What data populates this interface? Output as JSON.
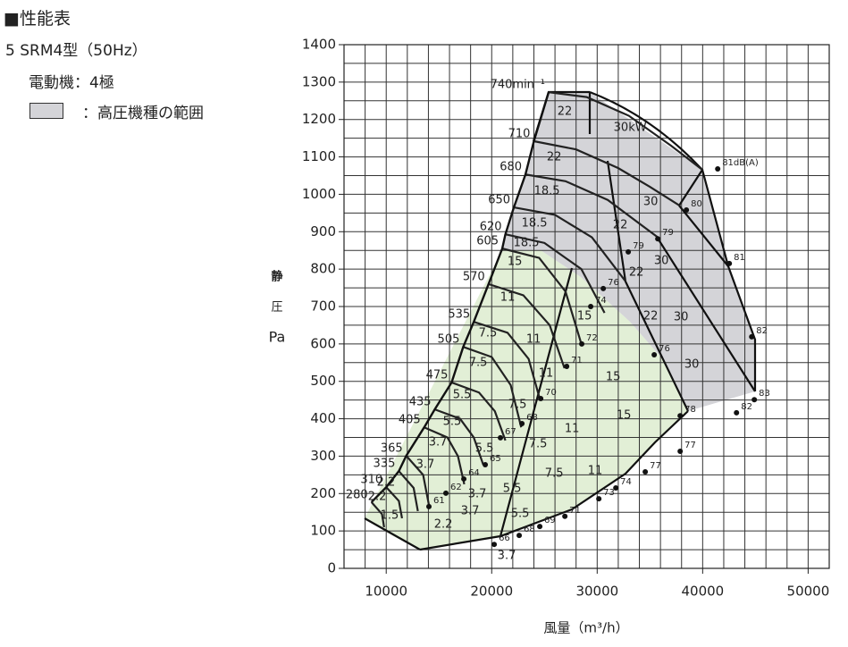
{
  "header": {
    "title": "■性能表",
    "model": "5 SRM4型（50Hz）",
    "motor": "電動機：4極",
    "legend": "：高圧機種の範囲"
  },
  "chart_data": {
    "type": "line",
    "ylabel": [
      "静",
      "圧",
      "Pa"
    ],
    "xlabel": "風量（m³/h）",
    "xlim": [
      6000,
      52000
    ],
    "ylim": [
      0,
      1400
    ],
    "xticks": [
      10000,
      20000,
      30000,
      40000,
      50000
    ],
    "yticks": [
      0,
      100,
      200,
      300,
      400,
      500,
      600,
      700,
      800,
      900,
      1000,
      1100,
      1200,
      1300,
      1400
    ],
    "x_grid": [
      6000,
      8000,
      10000,
      12000,
      14000,
      16000,
      18000,
      20000,
      22000,
      24000,
      26000,
      28000,
      30000,
      32000,
      34000,
      36000,
      38000,
      40000,
      42000,
      44000,
      46000,
      48000,
      50000,
      52000
    ],
    "y_grid": [
      0,
      50,
      100,
      150,
      200,
      250,
      300,
      350,
      400,
      450,
      500,
      550,
      600,
      650,
      700,
      750,
      800,
      850,
      900,
      950,
      1000,
      1050,
      1100,
      1150,
      1200,
      1250,
      1300,
      1350,
      1400
    ],
    "grid": true,
    "series": [
      {
        "name": "740min⁻¹",
        "color": "#222",
        "x": [
          25400,
          29000,
          33000,
          37000,
          40000
        ],
        "values": [
          1273,
          1260,
          1210,
          1130,
          1065
        ]
      },
      {
        "name": "710",
        "color": "#222",
        "x": [
          24000,
          28000,
          32000,
          35000,
          37800
        ],
        "values": [
          1142,
          1120,
          1070,
          1020,
          970
        ]
      },
      {
        "name": "680",
        "color": "#222",
        "x": [
          23200,
          27000,
          31000,
          35700
        ],
        "values": [
          1053,
          1035,
          985,
          886
        ]
      },
      {
        "name": "650",
        "color": "#222",
        "x": [
          22100,
          26000,
          29500,
          32700
        ],
        "values": [
          965,
          945,
          885,
          767
        ]
      },
      {
        "name": "620",
        "color": "#222",
        "x": [
          21300,
          25000,
          28500,
          30700
        ],
        "values": [
          893,
          870,
          800,
          683
        ]
      },
      {
        "name": "605",
        "color": "#222",
        "x": [
          21000,
          24500,
          27000,
          28500
        ],
        "values": [
          855,
          830,
          740,
          600
        ]
      },
      {
        "name": "570",
        "color": "#222",
        "x": [
          19700,
          23000,
          25500,
          26900
        ],
        "values": [
          760,
          730,
          650,
          535
        ]
      },
      {
        "name": "535",
        "color": "#222",
        "x": [
          18300,
          21500,
          23500,
          24600
        ],
        "values": [
          659,
          630,
          560,
          449
        ]
      },
      {
        "name": "505",
        "color": "#222",
        "x": [
          17300,
          20000,
          21800,
          22800
        ],
        "values": [
          592,
          565,
          490,
          377
        ]
      },
      {
        "name": "475",
        "color": "#222",
        "x": [
          16200,
          18800,
          20300,
          21300
        ],
        "values": [
          497,
          470,
          420,
          342
        ]
      },
      {
        "name": "435",
        "color": "#222",
        "x": [
          14600,
          17000,
          18300,
          19200
        ],
        "values": [
          425,
          400,
          350,
          277
        ]
      },
      {
        "name": "405",
        "color": "#222",
        "x": [
          13600,
          15800,
          16800,
          17400
        ],
        "values": [
          377,
          350,
          300,
          225
        ]
      },
      {
        "name": "365",
        "color": "#222",
        "x": [
          11900,
          13500,
          14100
        ],
        "values": [
          301,
          250,
          162
        ]
      },
      {
        "name": "335",
        "color": "#222",
        "x": [
          11200,
          12600,
          13000
        ],
        "values": [
          260,
          215,
          153
        ]
      },
      {
        "name": "310",
        "color": "#222",
        "x": [
          10000,
          11200,
          11500
        ],
        "values": [
          217,
          180,
          134
        ]
      },
      {
        "name": "280",
        "color": "#222",
        "x": [
          8600,
          9600,
          9800
        ],
        "values": [
          177,
          145,
          110
        ]
      }
    ],
    "kw_labels": [
      {
        "text": "22",
        "x": 26930,
        "y": 1221
      },
      {
        "text": "30kW",
        "x": 33120,
        "y": 1178
      },
      {
        "text": "22",
        "x": 25920,
        "y": 1099
      },
      {
        "text": "18.5",
        "x": 25240,
        "y": 1008
      },
      {
        "text": "30",
        "x": 35070,
        "y": 979
      },
      {
        "text": "18.5",
        "x": 24050,
        "y": 922
      },
      {
        "text": "22",
        "x": 32190,
        "y": 917
      },
      {
        "text": "18.5",
        "x": 23290,
        "y": 870
      },
      {
        "text": "22",
        "x": 33710,
        "y": 791
      },
      {
        "text": "30",
        "x": 36090,
        "y": 822
      },
      {
        "text": "15",
        "x": 22190,
        "y": 819
      },
      {
        "text": "11",
        "x": 21510,
        "y": 724
      },
      {
        "text": "15",
        "x": 28800,
        "y": 674
      },
      {
        "text": "22",
        "x": 35070,
        "y": 674
      },
      {
        "text": "30",
        "x": 37950,
        "y": 671
      },
      {
        "text": "7.5",
        "x": 19640,
        "y": 628
      },
      {
        "text": "11",
        "x": 23970,
        "y": 612
      },
      {
        "text": "7.5",
        "x": 18710,
        "y": 549
      },
      {
        "text": "11",
        "x": 25150,
        "y": 521
      },
      {
        "text": "15",
        "x": 31510,
        "y": 511
      },
      {
        "text": "30",
        "x": 38970,
        "y": 545
      },
      {
        "text": "5.5",
        "x": 17190,
        "y": 463
      },
      {
        "text": "7.5",
        "x": 22440,
        "y": 437
      },
      {
        "text": "15",
        "x": 32530,
        "y": 409
      },
      {
        "text": "5.5",
        "x": 16250,
        "y": 392
      },
      {
        "text": "11",
        "x": 27610,
        "y": 373
      },
      {
        "text": "3.7",
        "x": 14900,
        "y": 337
      },
      {
        "text": "7.5",
        "x": 24390,
        "y": 332
      },
      {
        "text": "5.5",
        "x": 19310,
        "y": 320
      },
      {
        "text": "3.7",
        "x": 13710,
        "y": 277
      },
      {
        "text": "7.5",
        "x": 25920,
        "y": 253
      },
      {
        "text": "11",
        "x": 29810,
        "y": 260
      },
      {
        "text": "2.2",
        "x": 9980,
        "y": 229
      },
      {
        "text": "3.7",
        "x": 18630,
        "y": 198
      },
      {
        "text": "5.5",
        "x": 21930,
        "y": 213
      },
      {
        "text": "2.2",
        "x": 9140,
        "y": 191
      },
      {
        "text": "3.7",
        "x": 17950,
        "y": 153
      },
      {
        "text": "5.5",
        "x": 22700,
        "y": 146
      },
      {
        "text": "1.5",
        "x": 10320,
        "y": 141
      },
      {
        "text": "2.2",
        "x": 15410,
        "y": 117
      },
      {
        "text": "3.7",
        "x": 21420,
        "y": 33
      }
    ],
    "db_labels": [
      {
        "text": "81dB(A)",
        "x": 42190,
        "y": 1080
      },
      {
        "text": "80",
        "x": 39220,
        "y": 970
      },
      {
        "text": "79",
        "x": 36510,
        "y": 893
      },
      {
        "text": "79",
        "x": 33710,
        "y": 858
      },
      {
        "text": "76",
        "x": 31340,
        "y": 760
      },
      {
        "text": "74",
        "x": 30150,
        "y": 712
      },
      {
        "text": "81",
        "x": 43290,
        "y": 827
      },
      {
        "text": "72",
        "x": 29300,
        "y": 612
      },
      {
        "text": "76",
        "x": 36170,
        "y": 583
      },
      {
        "text": "82",
        "x": 45410,
        "y": 631
      },
      {
        "text": "71",
        "x": 27870,
        "y": 552
      },
      {
        "text": "70",
        "x": 25410,
        "y": 466
      },
      {
        "text": "78",
        "x": 38630,
        "y": 420
      },
      {
        "text": "83",
        "x": 45660,
        "y": 463
      },
      {
        "text": "82",
        "x": 43970,
        "y": 428
      },
      {
        "text": "68",
        "x": 23630,
        "y": 399
      },
      {
        "text": "67",
        "x": 21590,
        "y": 361
      },
      {
        "text": "77",
        "x": 38630,
        "y": 325
      },
      {
        "text": "65",
        "x": 20150,
        "y": 289
      },
      {
        "text": "77",
        "x": 35320,
        "y": 270
      },
      {
        "text": "64",
        "x": 18120,
        "y": 251
      },
      {
        "text": "62",
        "x": 16420,
        "y": 213
      },
      {
        "text": "74",
        "x": 32530,
        "y": 227
      },
      {
        "text": "73",
        "x": 30920,
        "y": 198
      },
      {
        "text": "61",
        "x": 14810,
        "y": 177
      },
      {
        "text": "71",
        "x": 27700,
        "y": 151
      },
      {
        "text": "69",
        "x": 25320,
        "y": 124
      },
      {
        "text": "68",
        "x": 23370,
        "y": 100
      },
      {
        "text": "66",
        "x": 21000,
        "y": 76
      }
    ]
  }
}
